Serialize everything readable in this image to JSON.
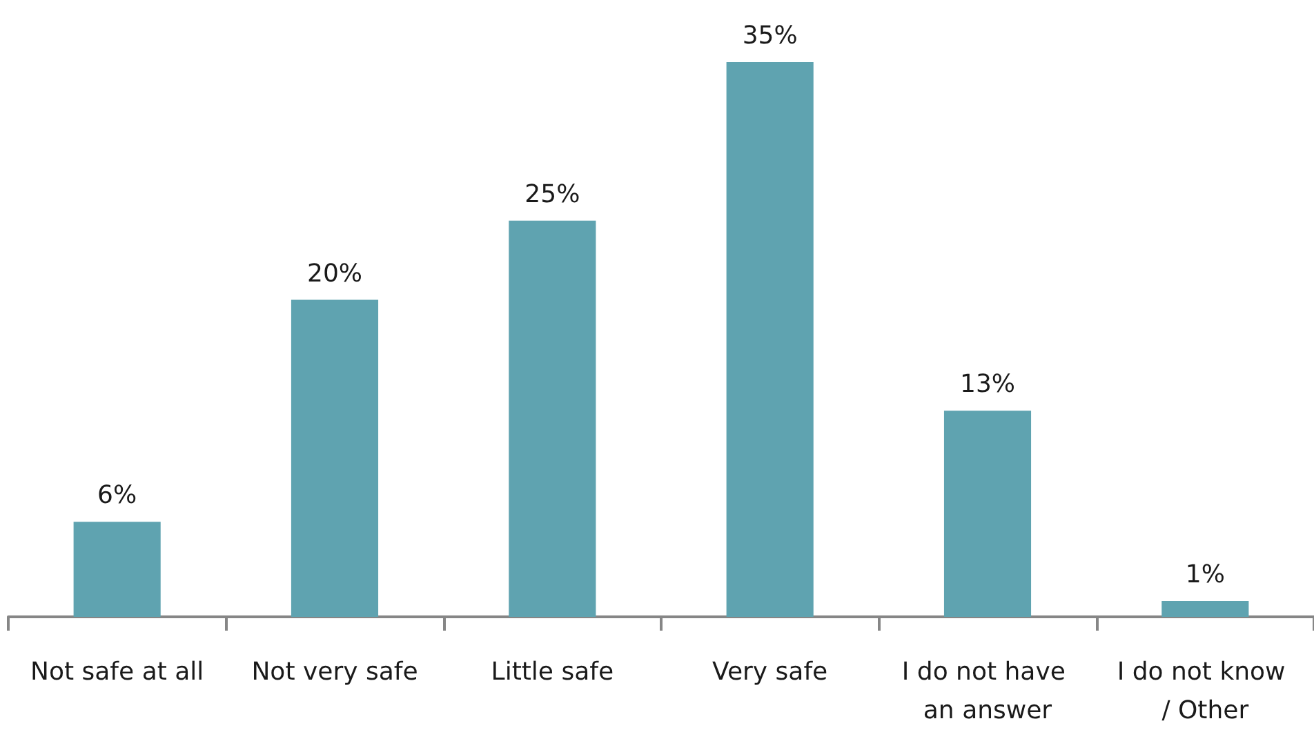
{
  "chart_data": {
    "type": "bar",
    "categories": [
      "Not safe at all",
      "Not very safe",
      "Little safe",
      "Very safe",
      "I do not have an answer",
      "I do not know / Other"
    ],
    "values": [
      6,
      20,
      25,
      35,
      13,
      1
    ],
    "color": "#5fa3b0",
    "value_labels": [
      "6%",
      "20%",
      "25%",
      "35%",
      "13%",
      "1%"
    ]
  }
}
